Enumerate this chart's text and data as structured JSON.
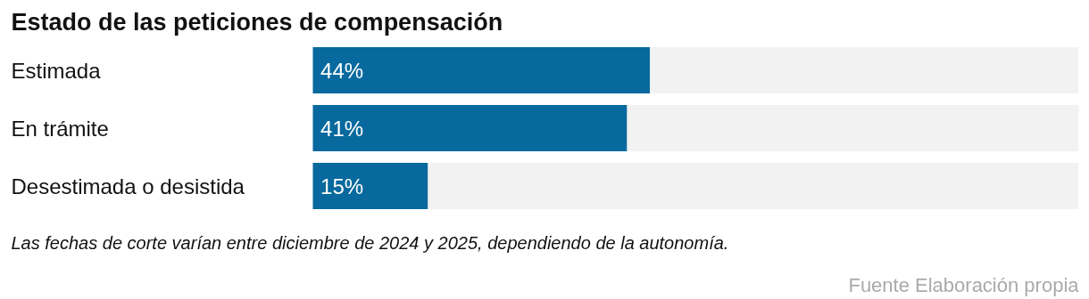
{
  "chart_data": {
    "type": "bar",
    "orientation": "horizontal",
    "title": "Estado de las peticiones de compensación",
    "categories": [
      "Estimada",
      "En trámite",
      "Desestimada o desistida"
    ],
    "values": [
      44,
      41,
      15
    ],
    "color": "#07699d",
    "value_labels": [
      "44%",
      "41%",
      "15%"
    ],
    "xlim": [
      0,
      100
    ],
    "tick_labels": false,
    "grid": false,
    "annotations": [
      "Las fechas de corte varían entre diciembre de 2024 y 2025, dependiendo de la autonomía.",
      "Fuente Elaboración propia"
    ]
  }
}
